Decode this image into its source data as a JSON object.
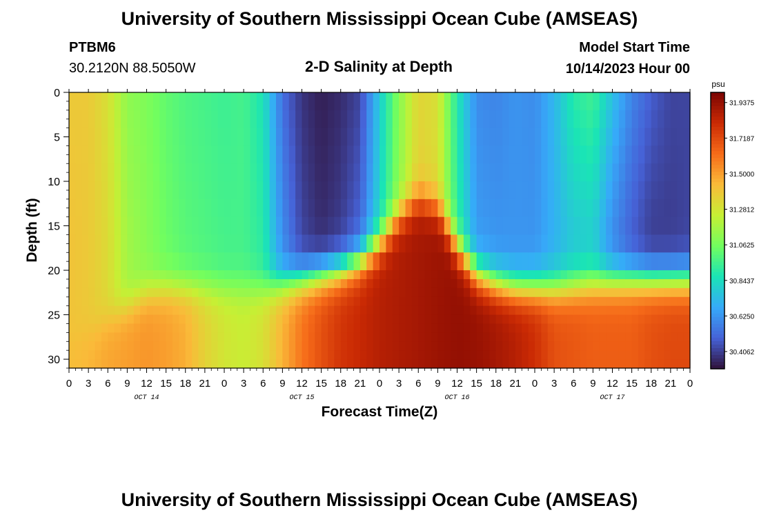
{
  "header": {
    "title": "University of Southern Mississippi Ocean Cube (AMSEAS)",
    "station": "PTBM6",
    "coords": "30.2120N  88.5050W",
    "subtitle": "2-D Salinity at Depth",
    "model_start_label": "Model Start Time",
    "model_start_value": "10/14/2023 Hour 00"
  },
  "footer": {
    "title": "University of Southern Mississippi Ocean Cube (AMSEAS)"
  },
  "colors": {
    "palette": [
      "#30123b",
      "#4662d7",
      "#36aaf9",
      "#1ae4b6",
      "#72fe5e",
      "#c7ef34",
      "#faba39",
      "#f66b19",
      "#ca2a04",
      "#7a0403"
    ]
  },
  "chart_data": {
    "type": "heatmap",
    "title": "2-D Salinity at Depth",
    "xlabel": "Forecast Time(Z)",
    "ylabel": "Depth (ft)",
    "x_ticks": [
      "0",
      "3",
      "6",
      "9",
      "12",
      "15",
      "18",
      "21",
      "0",
      "3",
      "6",
      "9",
      "12",
      "15",
      "18",
      "21",
      "0",
      "3",
      "6",
      "9",
      "12",
      "15",
      "18",
      "21",
      "0",
      "3",
      "6",
      "9",
      "12",
      "15",
      "18",
      "21",
      "0"
    ],
    "day_labels": [
      "OCT 14",
      "OCT 15",
      "OCT 16",
      "OCT 17"
    ],
    "y_ticks": [
      "0",
      "5",
      "10",
      "15",
      "20",
      "25",
      "30"
    ],
    "xlim": [
      0,
      96
    ],
    "ylim": [
      0,
      31
    ],
    "colorbar": {
      "unit": "psu",
      "min": 30.3,
      "max": 32.0,
      "ticks": [
        "31.9375",
        "31.7187",
        "31.5000",
        "31.2812",
        "31.0625",
        "30.8437",
        "30.6250",
        "30.4062"
      ]
    },
    "legend": "colorbar-right",
    "depth_levels_ft": [
      0,
      2,
      4,
      6,
      8,
      10,
      12,
      14,
      16,
      18,
      20,
      21,
      22,
      23,
      24,
      25,
      26,
      27,
      28,
      29,
      30,
      31
    ],
    "time_keys_h": [
      0,
      3,
      6,
      9,
      12,
      15,
      18,
      21,
      24,
      27,
      30,
      33,
      36,
      39,
      42,
      45,
      48,
      51,
      54,
      57,
      60,
      63,
      66,
      69,
      72,
      75,
      78,
      81,
      84,
      87,
      90,
      93,
      96
    ],
    "surface_salinity_psu": [
      31.38,
      31.38,
      31.3,
      31.12,
      31.08,
      31.02,
      30.98,
      30.96,
      30.94,
      30.96,
      30.86,
      30.52,
      30.38,
      30.33,
      30.36,
      30.42,
      30.78,
      31.1,
      31.34,
      31.3,
      30.88,
      30.6,
      30.58,
      30.62,
      30.6,
      30.72,
      30.9,
      30.95,
      30.75,
      30.58,
      30.48,
      30.42,
      30.42
    ],
    "mid_salinity_psu": [
      31.4,
      31.38,
      31.32,
      31.16,
      31.1,
      31.04,
      31.0,
      30.98,
      30.96,
      30.96,
      30.9,
      30.6,
      30.42,
      30.36,
      30.4,
      30.5,
      30.82,
      31.12,
      31.36,
      31.32,
      30.92,
      30.64,
      30.62,
      30.62,
      30.62,
      30.7,
      30.78,
      30.8,
      30.6,
      30.48,
      30.4,
      30.4,
      30.42
    ],
    "halocline_depth_ft": [
      28.0,
      27.0,
      25.5,
      24.0,
      22.5,
      22.0,
      22.0,
      22.0,
      22.0,
      22.0,
      22.0,
      21.5,
      21.0,
      20.5,
      20.0,
      19.0,
      17.0,
      14.0,
      12.0,
      13.0,
      17.5,
      20.5,
      21.5,
      22.0,
      22.0,
      22.0,
      21.8,
      21.5,
      21.2,
      21.0,
      21.0,
      21.0,
      21.0
    ],
    "bottom_salinity_psu": [
      31.42,
      31.44,
      31.48,
      31.5,
      31.52,
      31.5,
      31.46,
      31.35,
      31.28,
      31.25,
      31.3,
      31.45,
      31.6,
      31.7,
      31.78,
      31.82,
      31.86,
      31.88,
      31.9,
      31.92,
      31.94,
      31.93,
      31.9,
      31.86,
      31.8,
      31.7,
      31.68,
      31.66,
      31.66,
      31.66,
      31.7,
      31.72,
      31.72
    ]
  }
}
